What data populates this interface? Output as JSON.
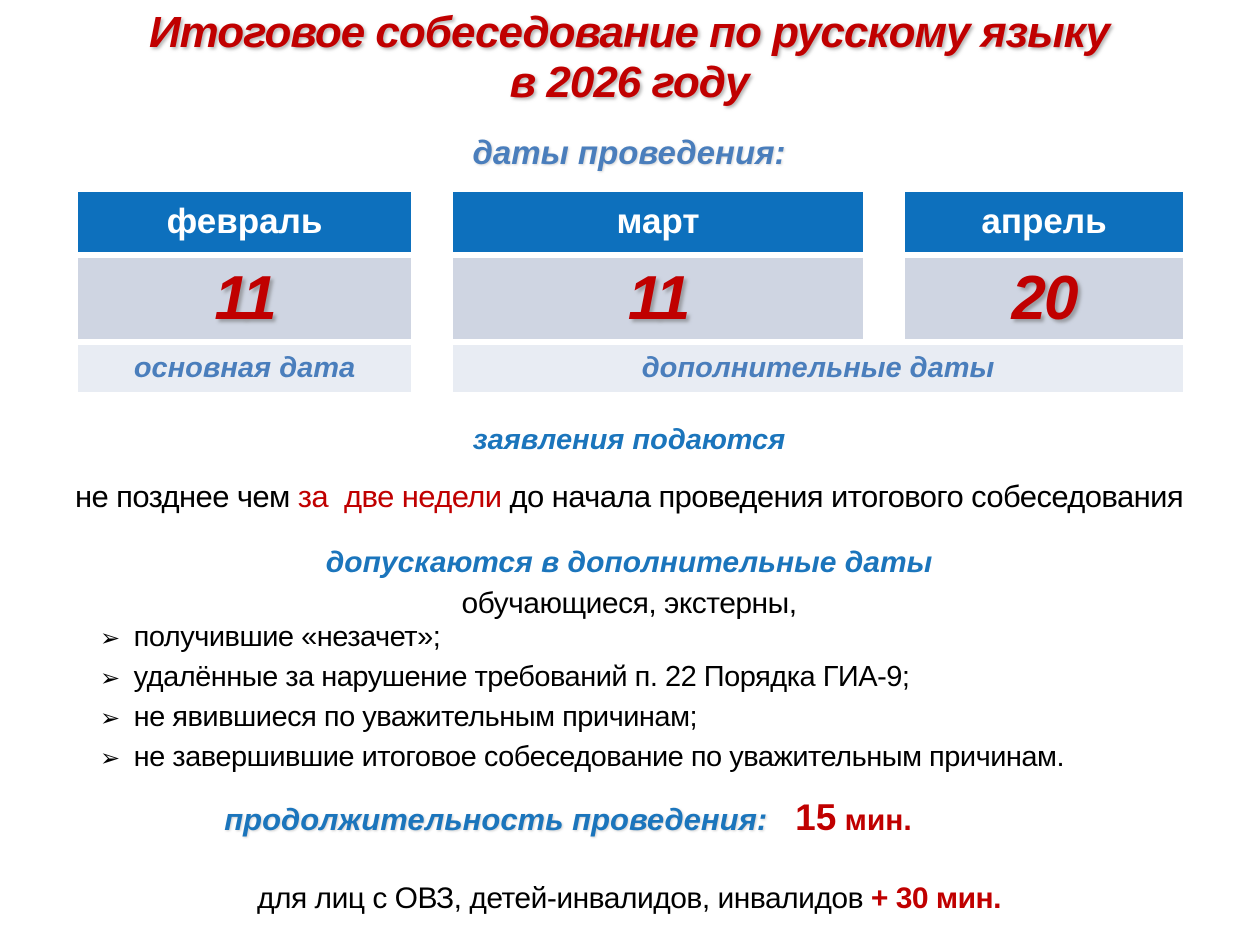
{
  "title": {
    "line1": "Итоговое собеседование по русскому языку",
    "line2": "в 2026 году"
  },
  "dates_heading": "даты проведения:",
  "calendar": {
    "months": [
      {
        "name": "февраль",
        "day": "11"
      },
      {
        "name": "март",
        "day": "11"
      },
      {
        "name": "апрель",
        "day": "20"
      }
    ],
    "primary_label": "основная дата",
    "additional_label": "дополнительные даты"
  },
  "applications": {
    "heading": "заявления подаются",
    "text_before": "не позднее чем ",
    "text_highlight": "за  две недели",
    "text_after": " до начала проведения итогового собеседования"
  },
  "admission": {
    "heading": "допускаются в дополнительные даты",
    "subheading": "обучающиеся, экстерны,",
    "bullet_icon": "➢",
    "items": [
      "получившие «незачет»;",
      "удалённые за нарушение требований п. 22 Порядка ГИА-9;",
      "не явившиеся по уважительным причинам;",
      "не завершившие итоговое собеседование по уважительным причинам."
    ]
  },
  "duration": {
    "heading": "продолжительность проведения:",
    "value": "15",
    "unit": " мин.",
    "special_text": "для лиц с ОВЗ, детей-инвалидов, инвалидов ",
    "special_value": "+ 30 мин."
  },
  "colors": {
    "title_red": "#c00000",
    "heading_blue": "#1b75bc",
    "soft_blue": "#4a7ebc",
    "calendar_header_bg": "#0d70bd",
    "calendar_day_bg": "#cfd5e2",
    "calendar_footer_bg": "#e8ecf3"
  }
}
